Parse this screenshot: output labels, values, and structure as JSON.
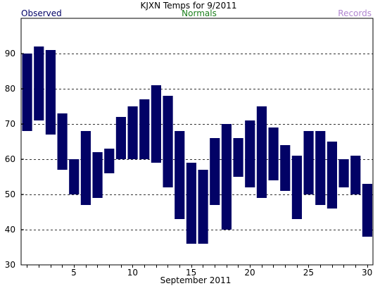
{
  "chart_data": {
    "type": "bar",
    "title": "KJXN Temps for 9/2011",
    "legend": {
      "observed": "Observed",
      "normals": "Normals",
      "records": "Records"
    },
    "xlabel": "September 2011",
    "ylabel": "",
    "ylim": [
      30,
      100
    ],
    "y_ticks": [
      30,
      40,
      50,
      60,
      70,
      80,
      90
    ],
    "x_tick_labels": [
      "5",
      "10",
      "15",
      "20",
      "25",
      "30"
    ],
    "x_tick_label_days": [
      5,
      10,
      15,
      20,
      25,
      30
    ],
    "days": [
      1,
      2,
      3,
      4,
      5,
      6,
      7,
      8,
      9,
      10,
      11,
      12,
      13,
      14,
      15,
      16,
      17,
      18,
      19,
      20,
      21,
      22,
      23,
      24,
      25,
      26,
      27,
      28,
      29,
      30
    ],
    "series": [
      {
        "name": "Observed",
        "high": [
          90,
          92,
          91,
          73,
          60,
          68,
          62,
          63,
          72,
          75,
          77,
          81,
          78,
          68,
          59,
          57,
          66,
          70,
          66,
          71,
          75,
          69,
          64,
          61,
          68,
          68,
          65,
          60,
          61,
          53
        ],
        "low": [
          68,
          71,
          67,
          57,
          50,
          47,
          49,
          56,
          60,
          60,
          60,
          59,
          52,
          43,
          36,
          36,
          47,
          40,
          55,
          52,
          49,
          54,
          51,
          43,
          50,
          47,
          46,
          52,
          50,
          38
        ]
      }
    ],
    "grid": true,
    "grid_values": [
      40,
      50,
      60,
      70,
      80,
      90
    ],
    "colors": {
      "bar": "#020266",
      "observed": "#020266",
      "normals": "#1a7f1a",
      "records": "#b085d0",
      "grid": "#333333",
      "text": "#000000"
    }
  }
}
